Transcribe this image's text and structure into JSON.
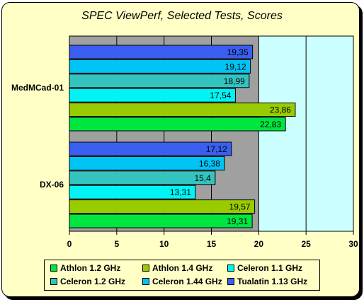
{
  "chart_data": {
    "type": "bar",
    "orientation": "horizontal",
    "title": "SPEC ViewPerf, Selected Tests, Scores",
    "xlabel": "",
    "ylabel": "",
    "xlim": [
      0,
      30
    ],
    "x_ticks": [
      "0",
      "5",
      "10",
      "15",
      "20",
      "25",
      "30"
    ],
    "categories": [
      "MedMCad-01",
      "DX-06"
    ],
    "series": [
      {
        "name": "Tualatin 1.13 GHz",
        "color": "#3a5ef0",
        "values": [
          19.35,
          17.12
        ],
        "labels": [
          "19,35",
          "17,12"
        ]
      },
      {
        "name": "Celeron 1.44 GHz",
        "color": "#00c4f4",
        "values": [
          19.12,
          16.38
        ],
        "labels": [
          "19,12",
          "16,38"
        ]
      },
      {
        "name": "Celeron 1.2 GHz",
        "color": "#33c4c0",
        "values": [
          18.99,
          15.4
        ],
        "labels": [
          "18,99",
          "15,4"
        ]
      },
      {
        "name": "Celeron 1.1 GHz",
        "color": "#00f4f4",
        "values": [
          17.54,
          13.31
        ],
        "labels": [
          "17,54",
          "13,31"
        ]
      },
      {
        "name": "Athlon 1.4 GHz",
        "color": "#99cc00",
        "values": [
          23.86,
          19.57
        ],
        "labels": [
          "23,86",
          "19,57"
        ]
      },
      {
        "name": "Athlon 1.2 GHz",
        "color": "#00e640",
        "values": [
          22.83,
          19.31
        ],
        "labels": [
          "22,83",
          "19,31"
        ]
      }
    ],
    "legend_order": [
      "Athlon 1.2 GHz",
      "Athlon 1.4 GHz",
      "Celeron 1.1 GHz",
      "Celeron 1.2 GHz",
      "Celeron 1.44 GHz",
      "Tualatin 1.13 GHz"
    ],
    "grid": true,
    "plot_background_light": "#ccffff",
    "plot_background_dark": "#a0a0a0",
    "legend_position": "bottom"
  }
}
